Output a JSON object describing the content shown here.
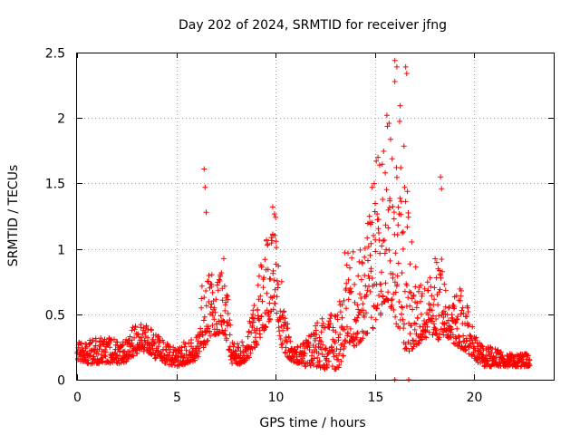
{
  "chart_data": {
    "type": "scatter",
    "title": "Day 202 of 2024, SRMTID for receiver jfng",
    "xlabel": "GPS time / hours",
    "ylabel": "SRMTID / TECUs",
    "xlim": [
      0,
      24
    ],
    "ylim": [
      0,
      2.5
    ],
    "grid": true,
    "marker": "+",
    "color": "#ff0000",
    "x_ticks": [
      0,
      5,
      10,
      15,
      20
    ],
    "x_tick_labels": [
      "0",
      "5",
      "10",
      "15",
      "20"
    ],
    "y_ticks": [
      0,
      0.5,
      1,
      1.5,
      2,
      2.5
    ],
    "y_tick_labels": [
      "0",
      "0.5",
      "1",
      "1.5",
      "2",
      "2.5"
    ],
    "envelope": {
      "x": [
        0,
        0.5,
        1,
        1.5,
        2,
        2.5,
        3,
        3.5,
        4,
        4.5,
        5,
        5.5,
        6,
        6.3,
        6.6,
        7,
        7.4,
        7.8,
        8.2,
        8.6,
        9,
        9.3,
        9.7,
        10,
        10.3,
        10.7,
        11,
        11.5,
        12,
        12.5,
        13,
        13.3,
        13.6,
        14,
        14.3,
        14.6,
        15,
        15.3,
        15.6,
        16,
        16.3,
        16.6,
        17,
        17.4,
        17.8,
        18.2,
        18.5,
        18.8,
        19.2,
        19.6,
        20,
        20.5,
        21,
        21.5,
        22,
        22.5,
        22.8
      ],
      "low": [
        0.15,
        0.12,
        0.12,
        0.13,
        0.12,
        0.14,
        0.2,
        0.22,
        0.15,
        0.12,
        0.1,
        0.12,
        0.15,
        0.22,
        0.3,
        0.35,
        0.35,
        0.12,
        0.12,
        0.15,
        0.25,
        0.35,
        0.45,
        0.55,
        0.25,
        0.15,
        0.12,
        0.1,
        0.1,
        0.08,
        0.08,
        0.1,
        0.3,
        0.25,
        0.3,
        0.35,
        0.4,
        0.5,
        0.6,
        0.45,
        0.3,
        0.2,
        0.25,
        0.3,
        0.35,
        0.3,
        0.35,
        0.3,
        0.25,
        0.22,
        0.15,
        0.1,
        0.1,
        0.1,
        0.1,
        0.1,
        0.1
      ],
      "high": [
        0.28,
        0.3,
        0.32,
        0.34,
        0.3,
        0.32,
        0.45,
        0.46,
        0.35,
        0.28,
        0.25,
        0.3,
        0.35,
        0.8,
        0.85,
        0.75,
        0.95,
        0.3,
        0.28,
        0.35,
        0.8,
        0.9,
        1.2,
        1.3,
        0.8,
        0.3,
        0.25,
        0.3,
        0.45,
        0.5,
        0.5,
        0.9,
        1.1,
        0.95,
        1.0,
        1.15,
        1.7,
        2.0,
        2.1,
        2.3,
        2.3,
        1.5,
        0.9,
        0.7,
        0.8,
        1.1,
        0.8,
        0.6,
        0.75,
        0.6,
        0.35,
        0.25,
        0.25,
        0.2,
        0.2,
        0.2,
        0.2
      ]
    },
    "notable_points": [
      {
        "x": 6.4,
        "y": 1.61
      },
      {
        "x": 6.45,
        "y": 1.47
      },
      {
        "x": 6.5,
        "y": 1.28
      },
      {
        "x": 9.85,
        "y": 1.32
      },
      {
        "x": 16.0,
        "y": 2.44
      },
      {
        "x": 16.1,
        "y": 2.39
      },
      {
        "x": 16.55,
        "y": 2.39
      },
      {
        "x": 16.6,
        "y": 2.34
      },
      {
        "x": 18.3,
        "y": 1.55
      },
      {
        "x": 18.35,
        "y": 1.46
      },
      {
        "x": 15.6,
        "y": 2.02
      },
      {
        "x": 16.3,
        "y": 1.62
      },
      {
        "x": 16.0,
        "y": 0.0
      },
      {
        "x": 16.7,
        "y": 0.0
      }
    ]
  }
}
